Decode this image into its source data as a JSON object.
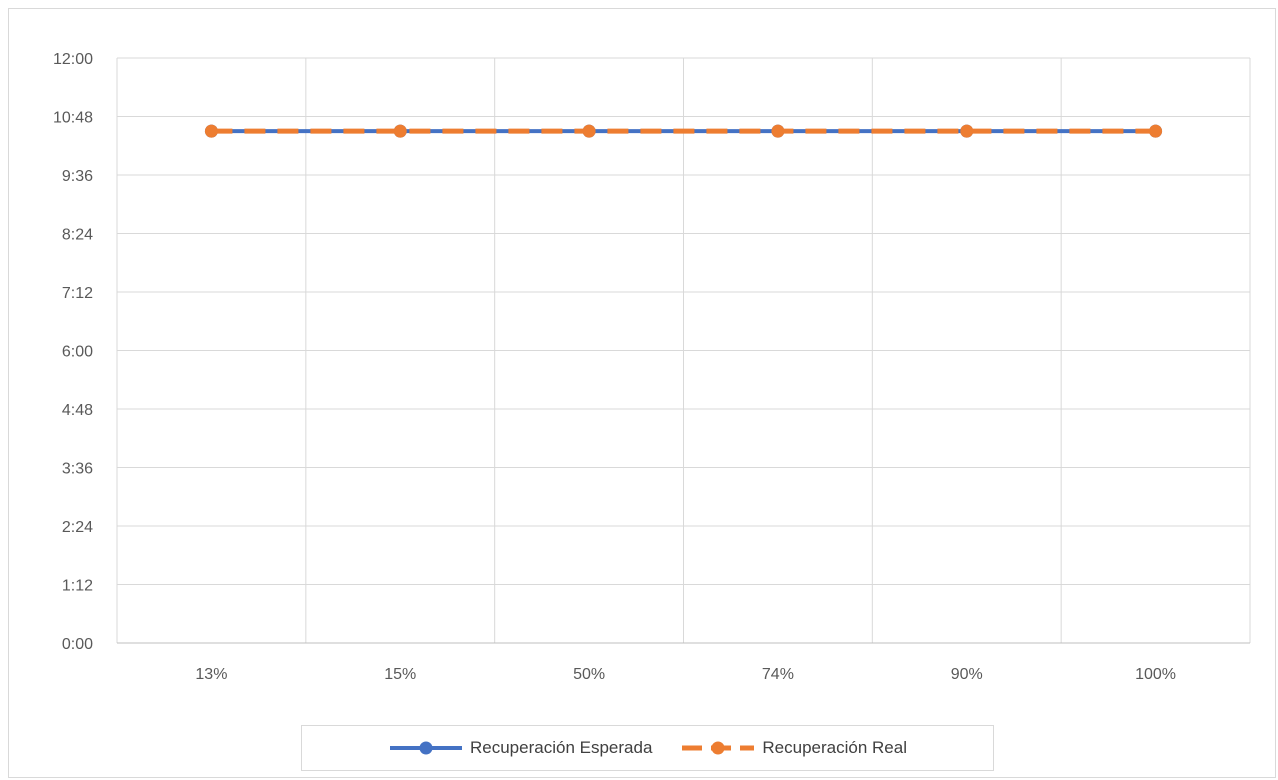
{
  "chart_data": {
    "type": "line",
    "title": "",
    "xlabel": "",
    "ylabel": "",
    "categories": [
      "13%",
      "15%",
      "50%",
      "74%",
      "90%",
      "100%"
    ],
    "y_tick_labels": [
      "0:00",
      "1:12",
      "2:24",
      "3:36",
      "4:48",
      "6:00",
      "7:12",
      "8:24",
      "9:36",
      "10:48",
      "12:00"
    ],
    "ylim_minutes": [
      0,
      720
    ],
    "y_tick_step_minutes": 72,
    "series": [
      {
        "name": "Recuperación Esperada",
        "values_minutes": [
          630,
          630,
          630,
          630,
          630,
          630
        ],
        "color": "#4472c4",
        "line_style": "solid"
      },
      {
        "name": "Recuperación Real",
        "values_minutes": [
          630,
          630,
          630,
          630,
          630,
          630
        ],
        "color": "#ed7d31",
        "line_style": "dashed"
      }
    ],
    "grid": true,
    "legend_position": "bottom"
  }
}
